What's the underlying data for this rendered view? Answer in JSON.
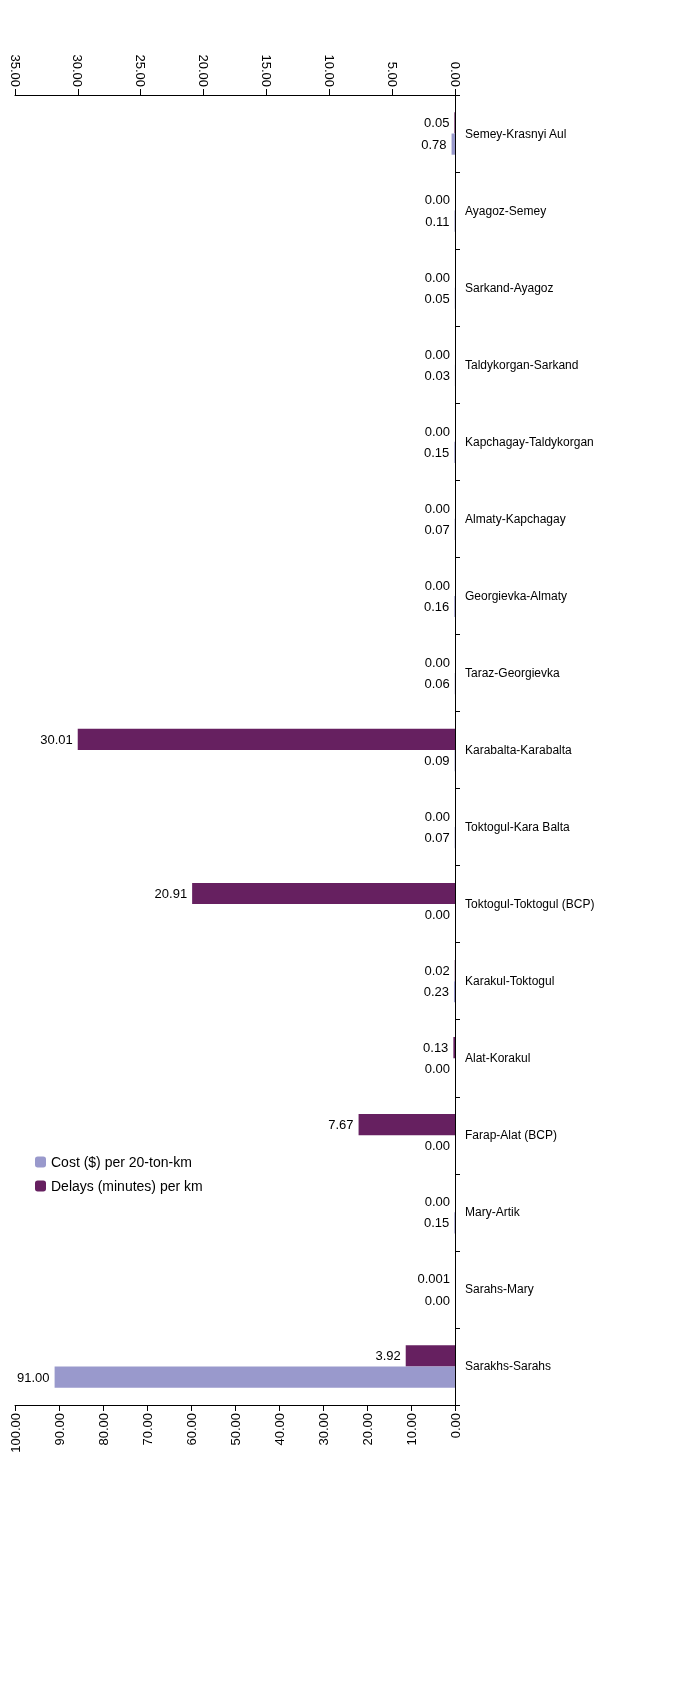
{
  "chart_data": {
    "type": "bar",
    "orientation": "horizontal",
    "grid": false,
    "legend": "bottom left",
    "categories": [
      "Semey-Krasnyi Aul",
      "Ayagoz-Semey",
      "Sarkand-Ayagoz",
      "Taldykorgan-Sarkand",
      "Kapchagay-Taldykorgan",
      "Almaty-Kapchagay",
      "Georgievka-Almaty",
      "Taraz-Georgievka",
      "Karabalta-Karabalta",
      "Toktogul-Kara Balta",
      "Toktogul-Toktogul (BCP)",
      "Karakul-Toktogul",
      "Alat-Korakul",
      "Farap-Alat (BCP)",
      "Mary-Artik",
      "Sarahs-Mary",
      "Sarakhs-Sarahs"
    ],
    "series": [
      {
        "name": "Delays (minutes) per km",
        "color": "#662060",
        "axis": "x2",
        "values": [
          0.05,
          0,
          0,
          0,
          0,
          0,
          0,
          0,
          30.01,
          0,
          20.91,
          0.02,
          0.13,
          7.67,
          0,
          0.001,
          3.92
        ],
        "value_labels": [
          "0.05",
          "0.00",
          "0.00",
          "0.00",
          "0.00",
          "0.00",
          "0.00",
          "0.00",
          "30.01",
          "0.00",
          "20.91",
          "0.02",
          "0.13",
          "7.67",
          "0.00",
          "0.001",
          "3.92"
        ]
      },
      {
        "name": "Cost ($) per 20-ton-km",
        "color": "#9999cc",
        "values": [
          0.78,
          0.11,
          0.05,
          0.03,
          0.15,
          0.07,
          0.16,
          0.06,
          0.09,
          0.07,
          0,
          0.23,
          0,
          0,
          0.15,
          0,
          91
        ],
        "value_labels": [
          "0.78",
          "0.11",
          "0.05",
          "0.03",
          "0.15",
          "0.07",
          "0.16",
          "0.06",
          "0.09",
          "0.07",
          "0.00",
          "0.23",
          "0.00",
          "0.00",
          "0.15",
          "0.00",
          "91.00"
        ]
      }
    ],
    "xlim": [
      100,
      0
    ],
    "xticks": [
      {
        "value": 0,
        "label": "0.00"
      },
      {
        "value": 10,
        "label": "10.00"
      },
      {
        "value": 20,
        "label": "20.00"
      },
      {
        "value": 30,
        "label": "30.00"
      },
      {
        "value": 40,
        "label": "40.00"
      },
      {
        "value": 50,
        "label": "50.00"
      },
      {
        "value": 60,
        "label": "60.00"
      },
      {
        "value": 70,
        "label": "70.00"
      },
      {
        "value": 80,
        "label": "80.00"
      },
      {
        "value": 90,
        "label": "90.00"
      },
      {
        "value": 100,
        "label": "100.00"
      }
    ],
    "x2lim": [
      35,
      0
    ],
    "x2ticks": [
      {
        "value": 0,
        "label": "0.00"
      },
      {
        "value": 5,
        "label": "5.00"
      },
      {
        "value": 10,
        "label": "10.00"
      },
      {
        "value": 15,
        "label": "15.00"
      },
      {
        "value": 20,
        "label": "20.00"
      },
      {
        "value": 25,
        "label": "25.00"
      },
      {
        "value": 30,
        "label": "30.00"
      },
      {
        "value": 35,
        "label": "35.00"
      }
    ]
  }
}
